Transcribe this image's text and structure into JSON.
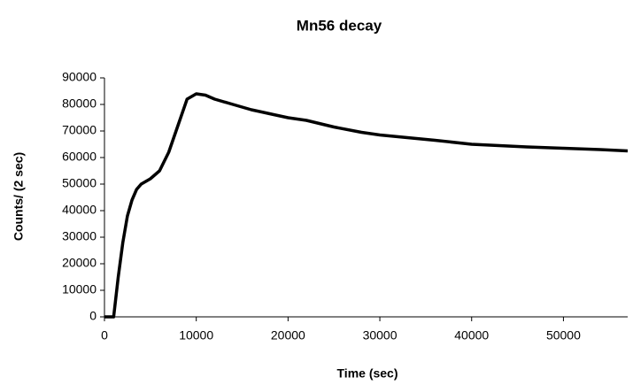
{
  "chart_data": {
    "type": "line",
    "title": "Mn56 decay",
    "x_label": "Time (sec)",
    "y_label": "Counts/ (2 sec)",
    "series": [
      {
        "name": "Counts",
        "color": "#000000",
        "x": [
          0,
          1000,
          1500,
          2000,
          2500,
          3000,
          3500,
          4000,
          5000,
          6000,
          7000,
          8000,
          9000,
          10000,
          11000,
          12000,
          14000,
          16000,
          18000,
          20000,
          22000,
          25000,
          28000,
          30000,
          33000,
          36000,
          40000,
          43000,
          46000,
          50000,
          54000,
          57000
        ],
        "values": [
          0,
          0,
          15000,
          28000,
          38000,
          44000,
          48000,
          50000,
          52000,
          55000,
          62000,
          72000,
          82000,
          84000,
          83500,
          82000,
          80000,
          78000,
          76500,
          75000,
          74000,
          71500,
          69500,
          68500,
          67500,
          66500,
          65000,
          64500,
          64000,
          63500,
          63000,
          62500
        ]
      }
    ],
    "xlim": [
      0,
      57000
    ],
    "xticks": [
      0,
      10000,
      20000,
      30000,
      40000,
      50000
    ],
    "ylim": [
      0,
      90000
    ],
    "yticks": [
      0,
      10000,
      20000,
      30000,
      40000,
      50000,
      60000,
      70000,
      80000,
      90000
    ],
    "grid": false
  }
}
